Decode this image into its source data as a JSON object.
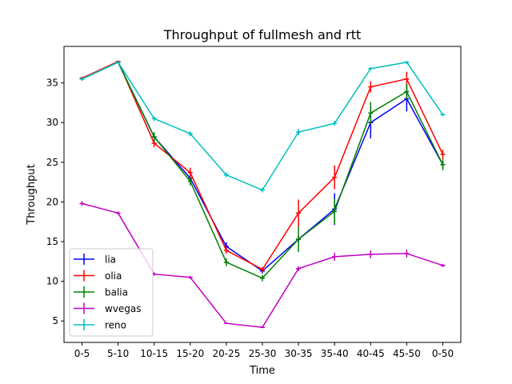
{
  "chart_data": {
    "type": "line",
    "title": "Throughput of fullmesh and rtt",
    "xlabel": "Time",
    "ylabel": "Throughput",
    "categories": [
      "0-5",
      "5-10",
      "10-15",
      "15-20",
      "20-25",
      "25-30",
      "30-35",
      "35-40",
      "40-45",
      "45-50",
      "0-50"
    ],
    "ylim": [
      2.3,
      39.6
    ],
    "yticks": [
      5,
      10,
      15,
      20,
      25,
      30,
      35
    ],
    "grid": false,
    "legend_position": "lower-left",
    "error_bars": true,
    "series": [
      {
        "name": "lia",
        "color": "#0000ff",
        "values": [
          35.5,
          37.6,
          28.2,
          23.0,
          14.4,
          11.3,
          15.3,
          19.1,
          30.0,
          33.0,
          24.7
        ],
        "errors": [
          0.2,
          0.1,
          0.5,
          0.5,
          0.5,
          0.3,
          0.4,
          2.0,
          2.0,
          1.6,
          0.4
        ]
      },
      {
        "name": "olia",
        "color": "#ff0000",
        "values": [
          35.6,
          37.7,
          27.4,
          23.7,
          13.9,
          11.5,
          18.6,
          23.1,
          34.5,
          35.5,
          26.0
        ],
        "errors": [
          0.2,
          0.1,
          0.5,
          0.6,
          0.4,
          0.3,
          1.7,
          1.5,
          0.7,
          0.9,
          0.6
        ]
      },
      {
        "name": "balia",
        "color": "#008000",
        "values": [
          35.5,
          37.6,
          28.2,
          22.6,
          12.4,
          10.4,
          15.3,
          18.8,
          31.2,
          33.9,
          24.7
        ],
        "errors": [
          0.2,
          0.1,
          0.6,
          0.5,
          0.5,
          0.4,
          1.6,
          1.6,
          1.4,
          1.0,
          0.7
        ]
      },
      {
        "name": "wvegas",
        "color": "#bf00bf",
        "values": [
          19.8,
          18.6,
          10.9,
          10.5,
          4.7,
          4.2,
          11.6,
          13.1,
          13.4,
          13.5,
          12.0
        ],
        "errors": [
          0.3,
          0.2,
          0.2,
          0.2,
          0.1,
          0.1,
          0.3,
          0.5,
          0.5,
          0.5,
          0.2
        ]
      },
      {
        "name": "reno",
        "color": "#00bfbf",
        "values": [
          35.5,
          37.6,
          30.5,
          28.6,
          23.4,
          21.5,
          28.8,
          29.9,
          36.8,
          37.6,
          31.0
        ],
        "errors": [
          0.2,
          0.1,
          0.3,
          0.3,
          0.3,
          0.3,
          0.4,
          0.3,
          0.2,
          0.2,
          0.2
        ]
      }
    ]
  }
}
